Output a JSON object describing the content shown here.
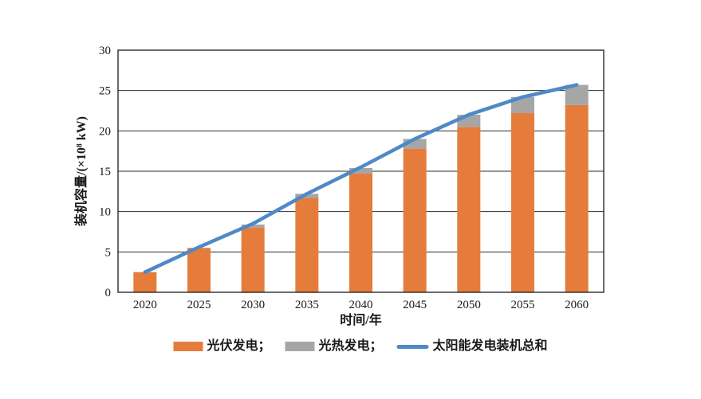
{
  "chart_data": {
    "type": "bar",
    "subtype": "stacked-bar-with-line-overlay",
    "title": "",
    "categories": [
      "2020",
      "2025",
      "2030",
      "2035",
      "2040",
      "2045",
      "2050",
      "2055",
      "2060"
    ],
    "series": [
      {
        "name": "光伏发电",
        "type": "bar",
        "stack": "solar",
        "color": "#E67C3C",
        "values": [
          2.5,
          5.5,
          8.0,
          11.7,
          14.7,
          17.8,
          20.5,
          22.2,
          23.2
        ]
      },
      {
        "name": "光热发电",
        "type": "bar",
        "stack": "solar",
        "color": "#A6A6A6",
        "values": [
          0,
          0,
          0.4,
          0.5,
          0.7,
          1.2,
          1.5,
          2.0,
          2.5
        ]
      },
      {
        "name": "太阳能发电装机总和",
        "type": "line",
        "color": "#4E89C8",
        "values": [
          2.5,
          5.6,
          8.5,
          12.2,
          15.5,
          19.0,
          22.0,
          24.2,
          25.7
        ]
      }
    ],
    "xlabel": "时间/年",
    "ylabel": "装机容量/(×10⁸ kW)",
    "ylim": [
      0,
      30
    ],
    "yticks": [
      0,
      5,
      10,
      15,
      20,
      25,
      30
    ],
    "grid": "horizontal",
    "legend_position": "bottom"
  },
  "legend": {
    "items": [
      {
        "label": "光伏发电；",
        "swatch": "rect",
        "color": "#E67C3C"
      },
      {
        "label": "光热发电；",
        "swatch": "rect",
        "color": "#A6A6A6"
      },
      {
        "label": "太阳能发电装机总和",
        "swatch": "line",
        "color": "#4E89C8"
      }
    ]
  },
  "colors": {
    "background": "#ffffff",
    "axis": "#1a1a1a",
    "grid": "#2b2b2b",
    "tick_text": "#1a1a1a"
  }
}
